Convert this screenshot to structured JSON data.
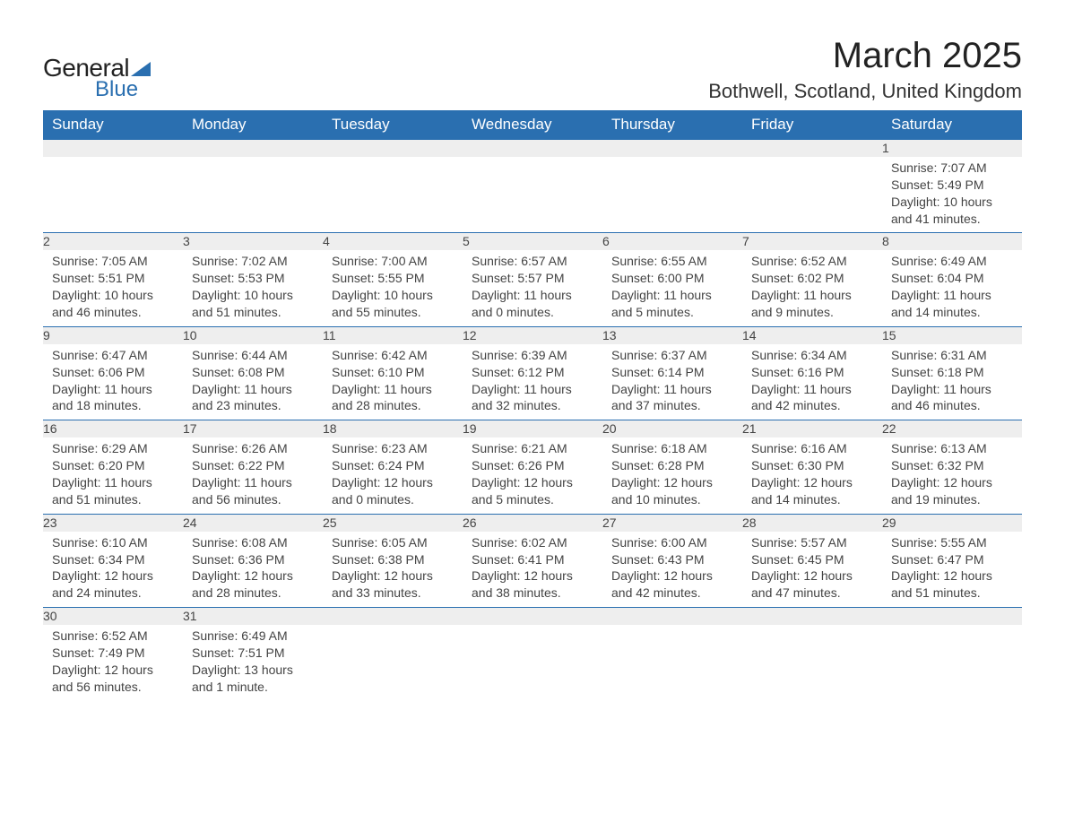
{
  "brand": {
    "general": "General",
    "blue": "Blue"
  },
  "header": {
    "title": "March 2025",
    "location": "Bothwell, Scotland, United Kingdom"
  },
  "colors": {
    "header_bg": "#2a6fb0",
    "header_text": "#ffffff",
    "daynum_bg": "#eeeeee",
    "row_border": "#2a6fb0",
    "text": "#444444",
    "background": "#ffffff"
  },
  "calendar": {
    "days_of_week": [
      "Sunday",
      "Monday",
      "Tuesday",
      "Wednesday",
      "Thursday",
      "Friday",
      "Saturday"
    ],
    "weeks": [
      [
        null,
        null,
        null,
        null,
        null,
        null,
        {
          "n": "1",
          "sunrise": "Sunrise: 7:07 AM",
          "sunset": "Sunset: 5:49 PM",
          "dl1": "Daylight: 10 hours",
          "dl2": "and 41 minutes."
        }
      ],
      [
        {
          "n": "2",
          "sunrise": "Sunrise: 7:05 AM",
          "sunset": "Sunset: 5:51 PM",
          "dl1": "Daylight: 10 hours",
          "dl2": "and 46 minutes."
        },
        {
          "n": "3",
          "sunrise": "Sunrise: 7:02 AM",
          "sunset": "Sunset: 5:53 PM",
          "dl1": "Daylight: 10 hours",
          "dl2": "and 51 minutes."
        },
        {
          "n": "4",
          "sunrise": "Sunrise: 7:00 AM",
          "sunset": "Sunset: 5:55 PM",
          "dl1": "Daylight: 10 hours",
          "dl2": "and 55 minutes."
        },
        {
          "n": "5",
          "sunrise": "Sunrise: 6:57 AM",
          "sunset": "Sunset: 5:57 PM",
          "dl1": "Daylight: 11 hours",
          "dl2": "and 0 minutes."
        },
        {
          "n": "6",
          "sunrise": "Sunrise: 6:55 AM",
          "sunset": "Sunset: 6:00 PM",
          "dl1": "Daylight: 11 hours",
          "dl2": "and 5 minutes."
        },
        {
          "n": "7",
          "sunrise": "Sunrise: 6:52 AM",
          "sunset": "Sunset: 6:02 PM",
          "dl1": "Daylight: 11 hours",
          "dl2": "and 9 minutes."
        },
        {
          "n": "8",
          "sunrise": "Sunrise: 6:49 AM",
          "sunset": "Sunset: 6:04 PM",
          "dl1": "Daylight: 11 hours",
          "dl2": "and 14 minutes."
        }
      ],
      [
        {
          "n": "9",
          "sunrise": "Sunrise: 6:47 AM",
          "sunset": "Sunset: 6:06 PM",
          "dl1": "Daylight: 11 hours",
          "dl2": "and 18 minutes."
        },
        {
          "n": "10",
          "sunrise": "Sunrise: 6:44 AM",
          "sunset": "Sunset: 6:08 PM",
          "dl1": "Daylight: 11 hours",
          "dl2": "and 23 minutes."
        },
        {
          "n": "11",
          "sunrise": "Sunrise: 6:42 AM",
          "sunset": "Sunset: 6:10 PM",
          "dl1": "Daylight: 11 hours",
          "dl2": "and 28 minutes."
        },
        {
          "n": "12",
          "sunrise": "Sunrise: 6:39 AM",
          "sunset": "Sunset: 6:12 PM",
          "dl1": "Daylight: 11 hours",
          "dl2": "and 32 minutes."
        },
        {
          "n": "13",
          "sunrise": "Sunrise: 6:37 AM",
          "sunset": "Sunset: 6:14 PM",
          "dl1": "Daylight: 11 hours",
          "dl2": "and 37 minutes."
        },
        {
          "n": "14",
          "sunrise": "Sunrise: 6:34 AM",
          "sunset": "Sunset: 6:16 PM",
          "dl1": "Daylight: 11 hours",
          "dl2": "and 42 minutes."
        },
        {
          "n": "15",
          "sunrise": "Sunrise: 6:31 AM",
          "sunset": "Sunset: 6:18 PM",
          "dl1": "Daylight: 11 hours",
          "dl2": "and 46 minutes."
        }
      ],
      [
        {
          "n": "16",
          "sunrise": "Sunrise: 6:29 AM",
          "sunset": "Sunset: 6:20 PM",
          "dl1": "Daylight: 11 hours",
          "dl2": "and 51 minutes."
        },
        {
          "n": "17",
          "sunrise": "Sunrise: 6:26 AM",
          "sunset": "Sunset: 6:22 PM",
          "dl1": "Daylight: 11 hours",
          "dl2": "and 56 minutes."
        },
        {
          "n": "18",
          "sunrise": "Sunrise: 6:23 AM",
          "sunset": "Sunset: 6:24 PM",
          "dl1": "Daylight: 12 hours",
          "dl2": "and 0 minutes."
        },
        {
          "n": "19",
          "sunrise": "Sunrise: 6:21 AM",
          "sunset": "Sunset: 6:26 PM",
          "dl1": "Daylight: 12 hours",
          "dl2": "and 5 minutes."
        },
        {
          "n": "20",
          "sunrise": "Sunrise: 6:18 AM",
          "sunset": "Sunset: 6:28 PM",
          "dl1": "Daylight: 12 hours",
          "dl2": "and 10 minutes."
        },
        {
          "n": "21",
          "sunrise": "Sunrise: 6:16 AM",
          "sunset": "Sunset: 6:30 PM",
          "dl1": "Daylight: 12 hours",
          "dl2": "and 14 minutes."
        },
        {
          "n": "22",
          "sunrise": "Sunrise: 6:13 AM",
          "sunset": "Sunset: 6:32 PM",
          "dl1": "Daylight: 12 hours",
          "dl2": "and 19 minutes."
        }
      ],
      [
        {
          "n": "23",
          "sunrise": "Sunrise: 6:10 AM",
          "sunset": "Sunset: 6:34 PM",
          "dl1": "Daylight: 12 hours",
          "dl2": "and 24 minutes."
        },
        {
          "n": "24",
          "sunrise": "Sunrise: 6:08 AM",
          "sunset": "Sunset: 6:36 PM",
          "dl1": "Daylight: 12 hours",
          "dl2": "and 28 minutes."
        },
        {
          "n": "25",
          "sunrise": "Sunrise: 6:05 AM",
          "sunset": "Sunset: 6:38 PM",
          "dl1": "Daylight: 12 hours",
          "dl2": "and 33 minutes."
        },
        {
          "n": "26",
          "sunrise": "Sunrise: 6:02 AM",
          "sunset": "Sunset: 6:41 PM",
          "dl1": "Daylight: 12 hours",
          "dl2": "and 38 minutes."
        },
        {
          "n": "27",
          "sunrise": "Sunrise: 6:00 AM",
          "sunset": "Sunset: 6:43 PM",
          "dl1": "Daylight: 12 hours",
          "dl2": "and 42 minutes."
        },
        {
          "n": "28",
          "sunrise": "Sunrise: 5:57 AM",
          "sunset": "Sunset: 6:45 PM",
          "dl1": "Daylight: 12 hours",
          "dl2": "and 47 minutes."
        },
        {
          "n": "29",
          "sunrise": "Sunrise: 5:55 AM",
          "sunset": "Sunset: 6:47 PM",
          "dl1": "Daylight: 12 hours",
          "dl2": "and 51 minutes."
        }
      ],
      [
        {
          "n": "30",
          "sunrise": "Sunrise: 6:52 AM",
          "sunset": "Sunset: 7:49 PM",
          "dl1": "Daylight: 12 hours",
          "dl2": "and 56 minutes."
        },
        {
          "n": "31",
          "sunrise": "Sunrise: 6:49 AM",
          "sunset": "Sunset: 7:51 PM",
          "dl1": "Daylight: 13 hours",
          "dl2": "and 1 minute."
        },
        null,
        null,
        null,
        null,
        null
      ]
    ]
  }
}
